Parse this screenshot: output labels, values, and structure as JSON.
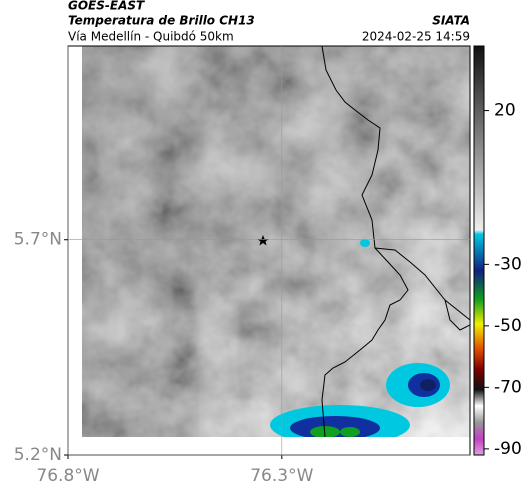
{
  "header": {
    "satellite": "GOES-EAST",
    "product": "Temperatura de Brillo CH13",
    "source": "SIATA",
    "region": "Vía Medellín - Quibdó 50km",
    "datetime": "2024-02-25 14:59"
  },
  "map": {
    "xlim": [
      -76.8,
      -75.86
    ],
    "ylim": [
      5.2,
      6.15
    ],
    "xticks": [
      {
        "value": -76.8,
        "label": "76.8°W"
      },
      {
        "value": -76.3,
        "label": "76.3°W"
      }
    ],
    "yticks": [
      {
        "value": 5.7,
        "label": "5.7°N"
      },
      {
        "value": 5.2,
        "label": "5.2°N"
      }
    ],
    "grid": true
  },
  "colorbar": {
    "clim": [
      -92,
      41
    ],
    "ticks": [
      20,
      -30,
      -50,
      -70,
      -90
    ]
  }
}
